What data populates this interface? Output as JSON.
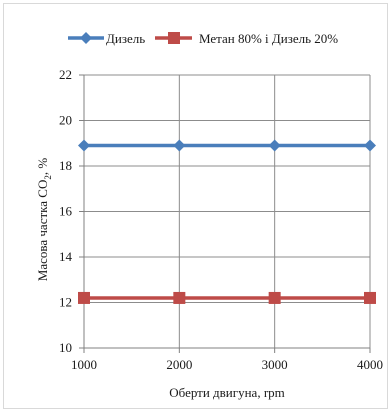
{
  "chart_data": {
    "type": "line",
    "title": "",
    "xlabel": "Оберти двигуна, rpm",
    "ylabel_main": "Масова частка CO",
    "ylabel_sub": "2",
    "ylabel_tail": ", %",
    "x": [
      1000,
      2000,
      3000,
      4000
    ],
    "x_tick_labels": [
      "1000",
      "2000",
      "3000",
      "4000"
    ],
    "ylim": [
      10,
      22
    ],
    "y_ticks": [
      10,
      12,
      14,
      16,
      18,
      20,
      22
    ],
    "y_tick_labels": [
      "10",
      "12",
      "14",
      "16",
      "18",
      "20",
      "22"
    ],
    "grid": true,
    "legend_position": "top",
    "series": [
      {
        "name": "Дизель",
        "values": [
          18.9,
          18.9,
          18.9,
          18.9
        ],
        "color": "#4a7ebb",
        "marker": "diamond"
      },
      {
        "name": "Метан 80% і Дизель 20%",
        "values": [
          12.2,
          12.2,
          12.2,
          12.2
        ],
        "color": "#be4b48",
        "marker": "square"
      }
    ]
  }
}
